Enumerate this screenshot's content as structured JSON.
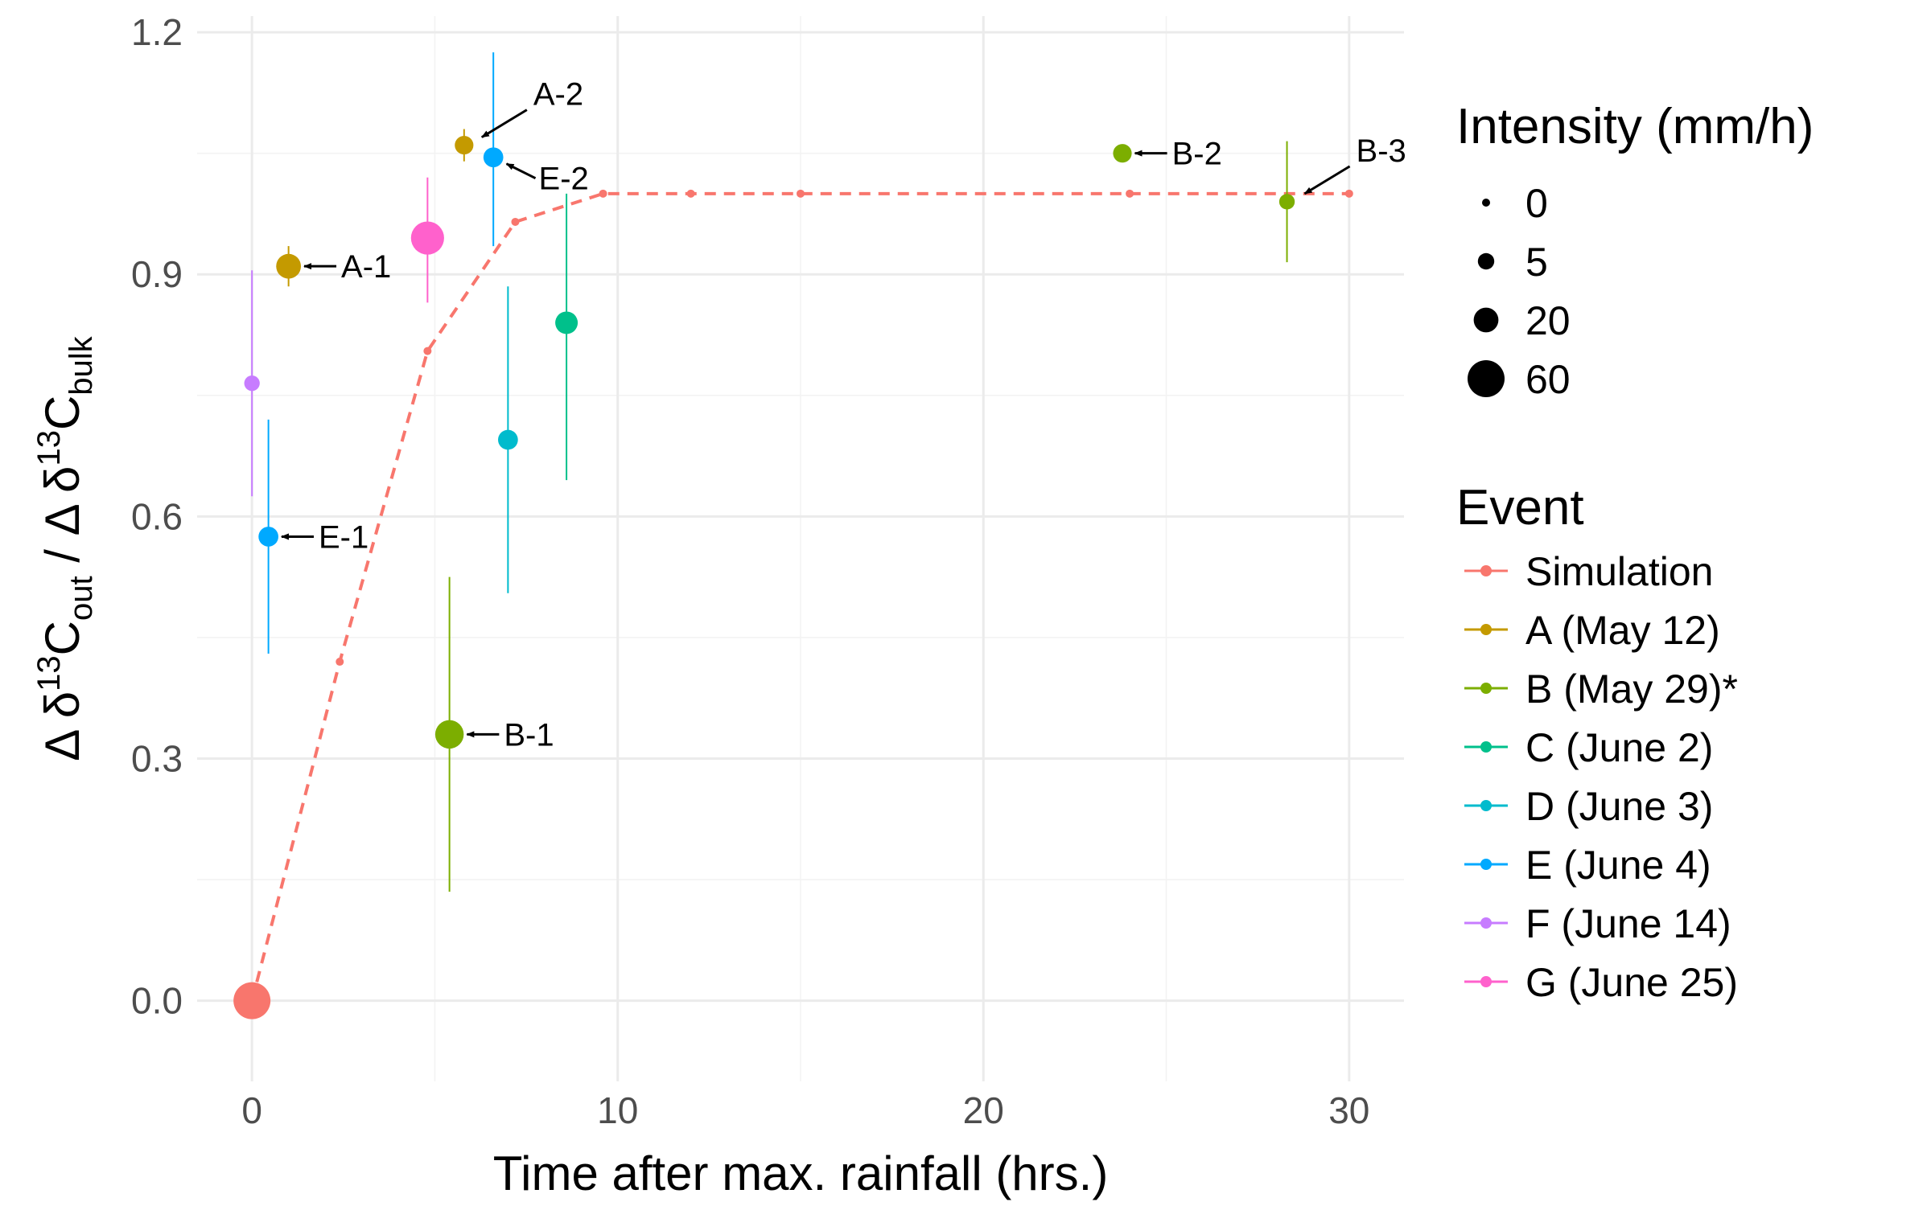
{
  "chart_data": {
    "type": "scatter",
    "xlabel": "Time after max. rainfall (hrs.)",
    "ylabel": {
      "parts": [
        {
          "t": "Δ δ",
          "sup": false,
          "sub": false
        },
        {
          "t": "13",
          "sup": true,
          "sub": false
        },
        {
          "t": "C",
          "sup": false,
          "sub": false
        },
        {
          "t": "out",
          "sup": false,
          "sub": true
        },
        {
          "t": " / Δ δ",
          "sup": false,
          "sub": false
        },
        {
          "t": "13",
          "sup": true,
          "sub": false
        },
        {
          "t": "C",
          "sup": false,
          "sub": false
        },
        {
          "t": "bulk",
          "sup": false,
          "sub": true
        }
      ]
    },
    "xlim": [
      -1.5,
      31.5
    ],
    "ylim": [
      -0.1,
      1.22
    ],
    "xticks": [
      0,
      10,
      20,
      30
    ],
    "xtick_labels": [
      "0",
      "10",
      "20",
      "30"
    ],
    "yticks": [
      0.0,
      0.3,
      0.6,
      0.9,
      1.2
    ],
    "ytick_labels": [
      "0.0",
      "0.3",
      "0.6",
      "0.9",
      "1.2"
    ],
    "grid": true,
    "legend_position": "right",
    "size_legend": {
      "title": "Intensity (mm/h)",
      "entries": [
        {
          "label": "0",
          "value": 0
        },
        {
          "label": "5",
          "value": 5
        },
        {
          "label": "20",
          "value": 20
        },
        {
          "label": "60",
          "value": 60
        }
      ]
    },
    "color_legend": {
      "title": "Event",
      "entries": [
        {
          "label": "Simulation",
          "color": "#F8766D"
        },
        {
          "label": "A (May 12)",
          "color": "#C49A00"
        },
        {
          "label": "B (May 29)*",
          "color": "#7CAE00"
        },
        {
          "label": "C (June 2)",
          "color": "#00C08B"
        },
        {
          "label": "D (June 3)",
          "color": "#00BBCD"
        },
        {
          "label": "E (June 4)",
          "color": "#00A9FF"
        },
        {
          "label": "F (June 14)",
          "color": "#C77CFF"
        },
        {
          "label": "G (June 25)",
          "color": "#FF61CC"
        }
      ]
    },
    "simulation": {
      "name": "Simulation",
      "color": "#F8766D",
      "line_style": "dashed",
      "x": [
        0,
        2.4,
        4.8,
        7.2,
        9.6,
        12,
        15,
        24,
        30
      ],
      "y": [
        0.0,
        0.42,
        0.805,
        0.965,
        1.0,
        1.0,
        1.0,
        1.0,
        1.0
      ],
      "intensity": [
        60,
        0,
        0,
        0,
        0,
        0,
        0,
        0,
        0
      ]
    },
    "points": [
      {
        "event": "A (May 12)",
        "x": 1.0,
        "y": 0.91,
        "ymin": 0.885,
        "ymax": 0.935,
        "intensity": 20,
        "label": "A-1",
        "label_side": "right"
      },
      {
        "event": "A (May 12)",
        "x": 5.8,
        "y": 1.06,
        "ymin": 1.04,
        "ymax": 1.08,
        "intensity": 8,
        "label": "A-2",
        "label_side": "up-right"
      },
      {
        "event": "B (May 29)*",
        "x": 5.4,
        "y": 0.33,
        "ymin": 0.135,
        "ymax": 0.525,
        "intensity": 30,
        "label": "B-1",
        "label_side": "right"
      },
      {
        "event": "B (May 29)*",
        "x": 23.8,
        "y": 1.05,
        "ymin": 1.04,
        "ymax": 1.06,
        "intensity": 8,
        "label": "B-2",
        "label_side": "right"
      },
      {
        "event": "B (May 29)*",
        "x": 28.3,
        "y": 0.99,
        "ymin": 0.915,
        "ymax": 1.065,
        "intensity": 4,
        "label": "B-3",
        "label_side": "up-right"
      },
      {
        "event": "C (June 2)",
        "x": 8.6,
        "y": 0.84,
        "ymin": 0.645,
        "ymax": 1.0,
        "intensity": 15,
        "label": "",
        "label_side": ""
      },
      {
        "event": "D (June 3)",
        "x": 7.0,
        "y": 0.695,
        "ymin": 0.505,
        "ymax": 0.885,
        "intensity": 10,
        "label": "",
        "label_side": ""
      },
      {
        "event": "E (June 4)",
        "x": 0.45,
        "y": 0.575,
        "ymin": 0.43,
        "ymax": 0.72,
        "intensity": 10,
        "label": "E-1",
        "label_side": "right"
      },
      {
        "event": "E (June 4)",
        "x": 6.6,
        "y": 1.045,
        "ymin": 0.935,
        "ymax": 1.175,
        "intensity": 10,
        "label": "E-2",
        "label_side": "down-right"
      },
      {
        "event": "F (June 14)",
        "x": 0.0,
        "y": 0.765,
        "ymin": 0.625,
        "ymax": 0.905,
        "intensity": 4,
        "label": "",
        "label_side": ""
      },
      {
        "event": "G (June 25)",
        "x": 4.8,
        "y": 0.945,
        "ymin": 0.865,
        "ymax": 1.02,
        "intensity": 45,
        "label": "",
        "label_side": ""
      }
    ]
  }
}
